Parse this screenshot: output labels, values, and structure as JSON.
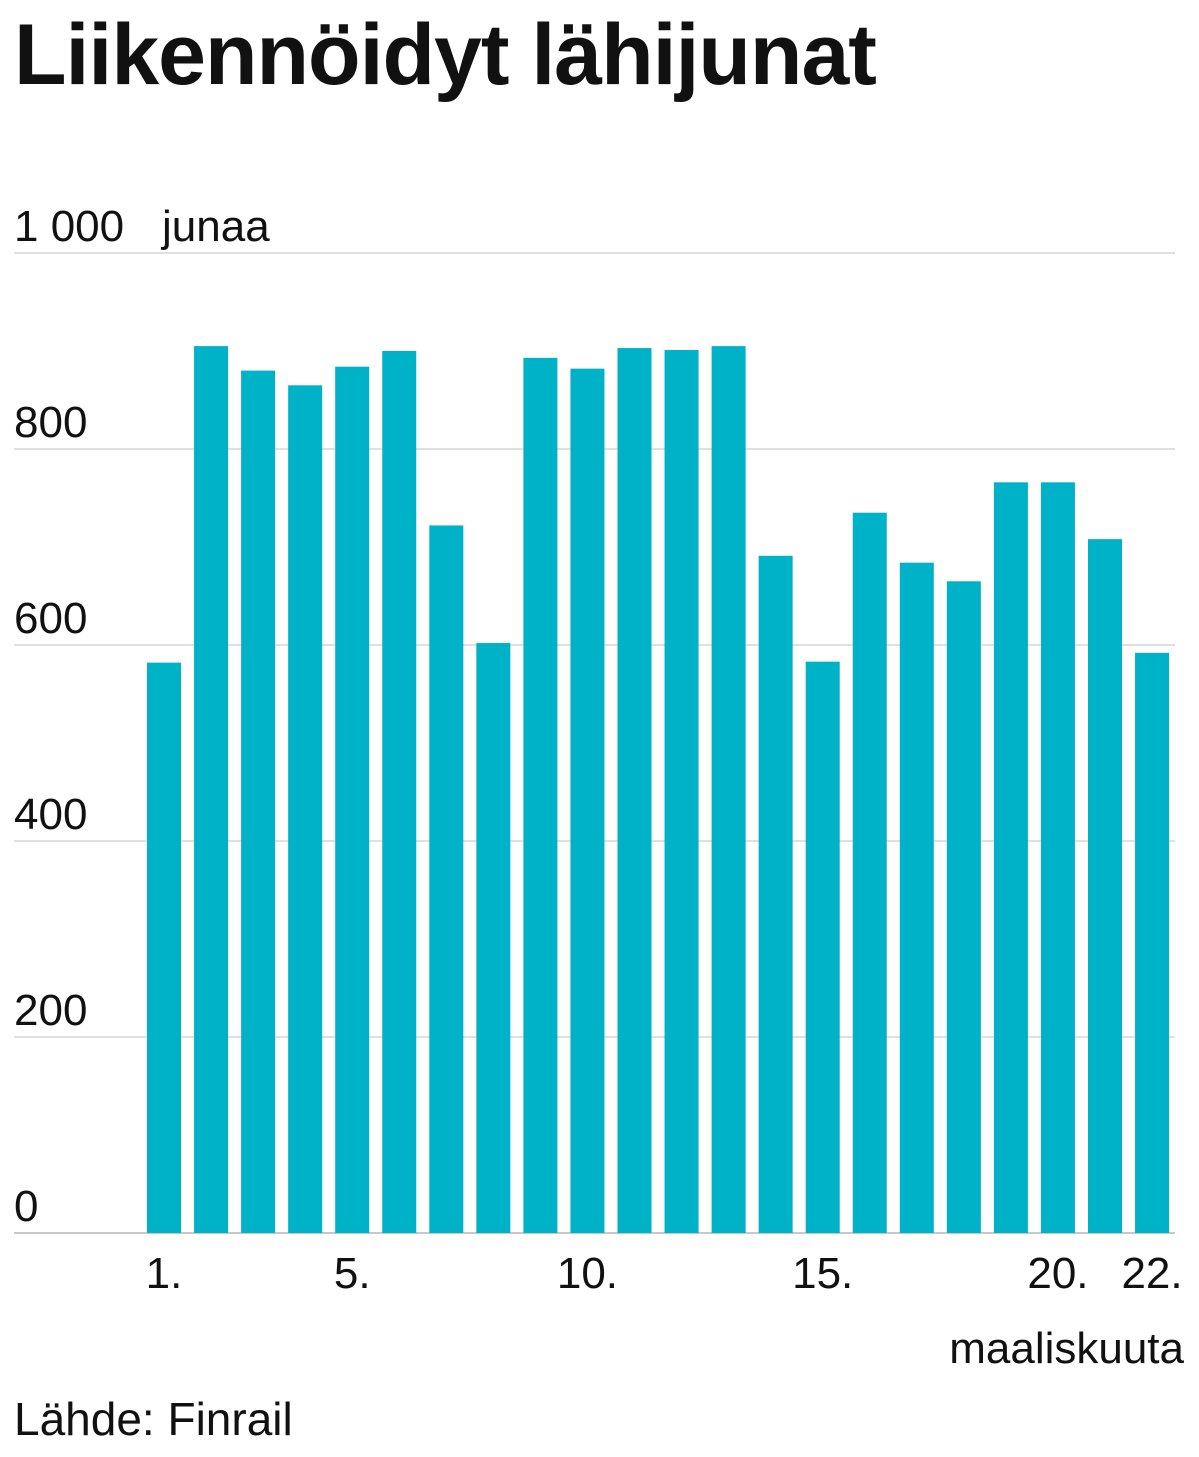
{
  "title": "Liikennöidyt lähijunat",
  "source": "Lähde: Finrail",
  "colors": {
    "bar": "#00b2c8",
    "grid": "#d6d6d6",
    "axis": "#c8c8c8",
    "text": "#111111"
  },
  "chart_data": {
    "type": "bar",
    "title": "Liikennöidyt lähijunat",
    "ylabel": "junaa",
    "xlabel": "maaliskuuta",
    "ylim": [
      0,
      1000
    ],
    "yticks": [
      0,
      200,
      400,
      600,
      800,
      1000
    ],
    "ytick_labels": [
      "0",
      "200",
      "400",
      "600",
      "800",
      "1 000"
    ],
    "grid": true,
    "categories": [
      "1.",
      "2.",
      "3.",
      "4.",
      "5.",
      "6.",
      "7.",
      "8.",
      "9.",
      "10.",
      "11.",
      "12.",
      "13.",
      "14.",
      "15.",
      "16.",
      "17.",
      "18.",
      "19.",
      "20.",
      "21.",
      "22."
    ],
    "xtick_labels": [
      {
        "index": 0,
        "label": "1."
      },
      {
        "index": 4,
        "label": "5."
      },
      {
        "index": 9,
        "label": "10."
      },
      {
        "index": 14,
        "label": "15."
      },
      {
        "index": 19,
        "label": "20."
      },
      {
        "index": 21,
        "label": "22."
      }
    ],
    "values": [
      582,
      905,
      880,
      865,
      884,
      900,
      722,
      602,
      893,
      882,
      903,
      901,
      905,
      691,
      583,
      735,
      684,
      665,
      766,
      766,
      708,
      592
    ]
  }
}
